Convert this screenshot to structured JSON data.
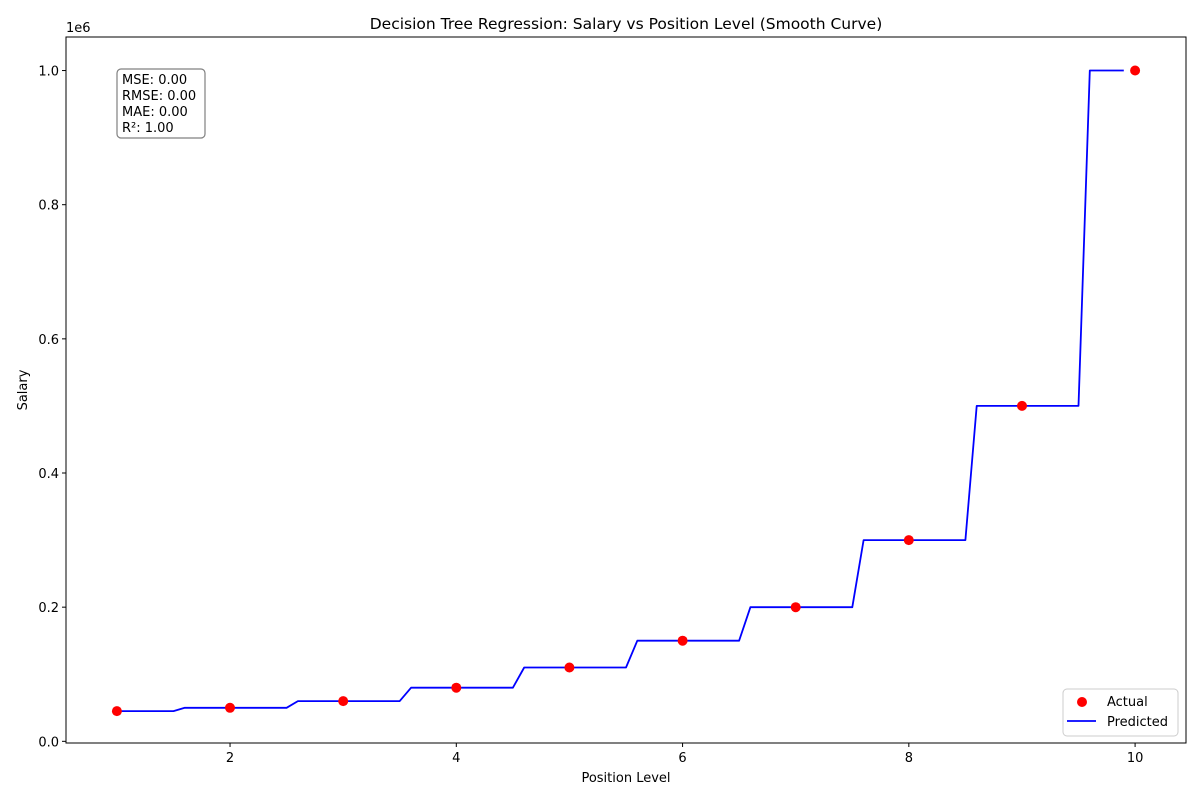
{
  "chart_data": {
    "type": "line",
    "title": "Decision Tree Regression: Salary vs Position Level (Smooth Curve)",
    "xlabel": "Position Level",
    "ylabel": "Salary",
    "y_offset_text": "1e6",
    "xlim": [
      0.55,
      10.45
    ],
    "ylim": [
      -2500,
      1050000
    ],
    "x_ticks": [
      2,
      4,
      6,
      8,
      10
    ],
    "x_tick_labels": [
      "2",
      "4",
      "6",
      "8",
      "10"
    ],
    "y_ticks": [
      0,
      200000,
      400000,
      600000,
      800000,
      1000000
    ],
    "y_tick_labels": [
      "0.0",
      "0.2",
      "0.4",
      "0.6",
      "0.8",
      "1.0"
    ],
    "grid": false,
    "legend_position": "lower-right",
    "series": [
      {
        "name": "Actual",
        "kind": "scatter",
        "color": "#ff0000",
        "x": [
          1,
          2,
          3,
          4,
          5,
          6,
          7,
          8,
          9,
          10
        ],
        "y": [
          45000,
          50000,
          60000,
          80000,
          110000,
          150000,
          200000,
          300000,
          500000,
          1000000
        ]
      },
      {
        "name": "Predicted",
        "kind": "line",
        "color": "#0000ff",
        "x": [
          1.0,
          1.5,
          1.6,
          2.5,
          2.6,
          3.5,
          3.6,
          4.5,
          4.6,
          5.5,
          5.6,
          6.5,
          6.6,
          7.5,
          7.6,
          8.5,
          8.6,
          9.5,
          9.6,
          9.9
        ],
        "y": [
          45000,
          45000,
          50000,
          50000,
          60000,
          60000,
          80000,
          80000,
          110000,
          110000,
          150000,
          150000,
          200000,
          200000,
          300000,
          300000,
          500000,
          500000,
          1000000,
          1000000
        ]
      }
    ],
    "metrics": [
      "MSE: 0.00",
      "RMSE: 0.00",
      "MAE: 0.00",
      "R²: 1.00"
    ]
  }
}
